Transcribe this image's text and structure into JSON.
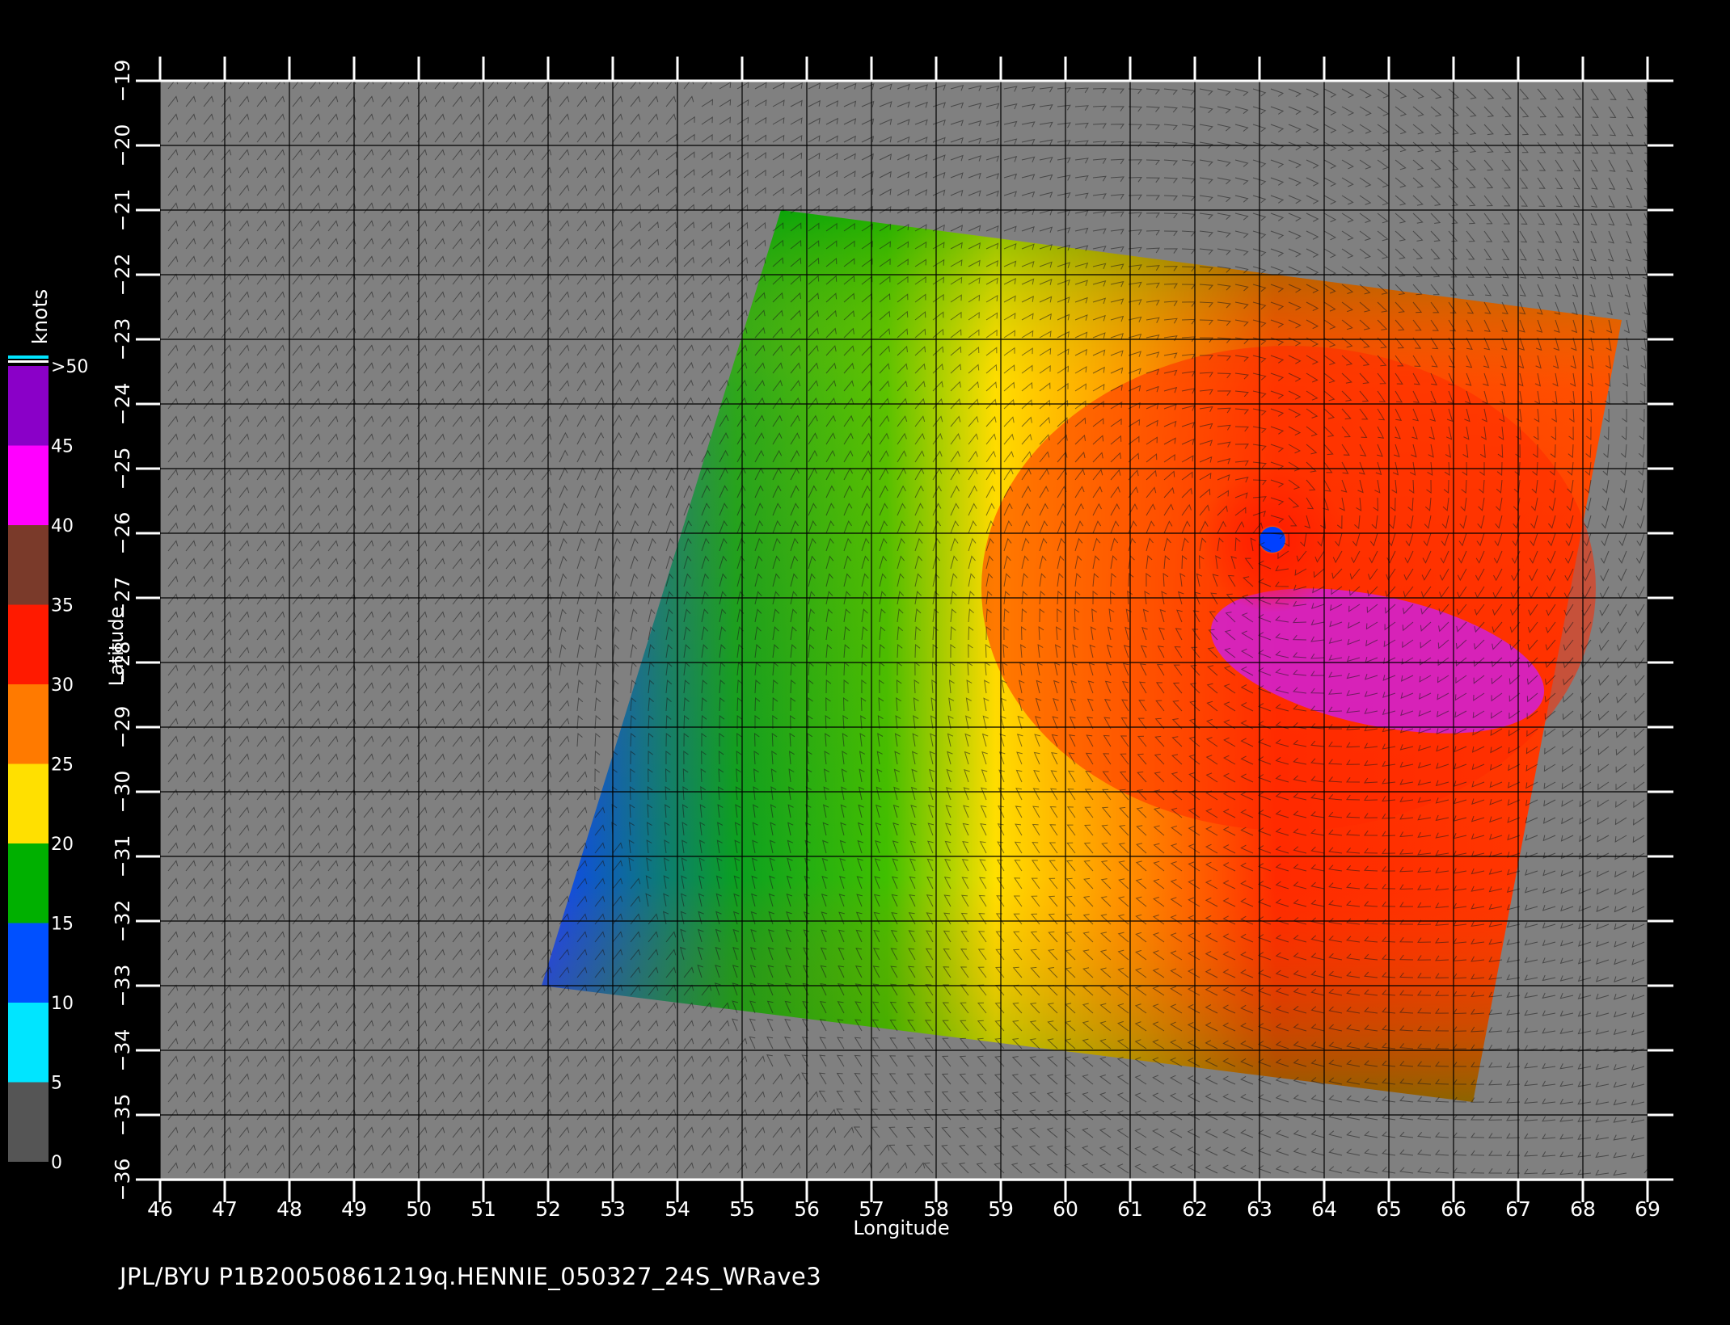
{
  "map": {
    "xlabel": "Longitude",
    "ylabel": "Latitude",
    "lon_ticks": [
      46,
      47,
      48,
      49,
      50,
      51,
      52,
      53,
      54,
      55,
      56,
      57,
      58,
      59,
      60,
      61,
      62,
      63,
      64,
      65,
      66,
      67,
      68,
      69
    ],
    "lat_ticks": [
      -19,
      -20,
      -21,
      -22,
      -23,
      -24,
      -25,
      -26,
      -27,
      -28,
      -29,
      -30,
      -31,
      -32,
      -33,
      -34,
      -35,
      -36
    ],
    "lon_range": [
      46,
      69
    ],
    "lat_range": [
      -36,
      -19
    ],
    "grid": true,
    "background": "#808080",
    "swath_corners_lonlat": [
      [
        55.6,
        -21.0
      ],
      [
        68.6,
        -22.7
      ],
      [
        66.3,
        -34.8
      ],
      [
        51.9,
        -33.0
      ]
    ],
    "storm_center_lonlat": [
      63.2,
      -26.1
    ]
  },
  "colorbar": {
    "title": "knots",
    "labels": [
      ">50",
      "45",
      "40",
      "35",
      "30",
      "25",
      "20",
      "15",
      "10",
      "5",
      "0"
    ],
    "bands": [
      {
        "from": 0,
        "to": 5,
        "color": "#555555"
      },
      {
        "from": 5,
        "to": 10,
        "color": "#00e5ff"
      },
      {
        "from": 10,
        "to": 15,
        "color": "#0050ff"
      },
      {
        "from": 15,
        "to": 20,
        "color": "#00b000"
      },
      {
        "from": 20,
        "to": 25,
        "color": "#ffe000"
      },
      {
        "from": 25,
        "to": 30,
        "color": "#ff7a00"
      },
      {
        "from": 30,
        "to": 35,
        "color": "#ff1a00"
      },
      {
        "from": 35,
        "to": 40,
        "color": "#7a3a2a"
      },
      {
        "from": 40,
        "to": 45,
        "color": "#ff00ff"
      },
      {
        "from": 45,
        "to": 50,
        "color": "#8a00c8"
      }
    ]
  },
  "footer": {
    "text": "JPL/BYU  P1B20050861219q.HENNIE_050327_24S_WRave3"
  }
}
